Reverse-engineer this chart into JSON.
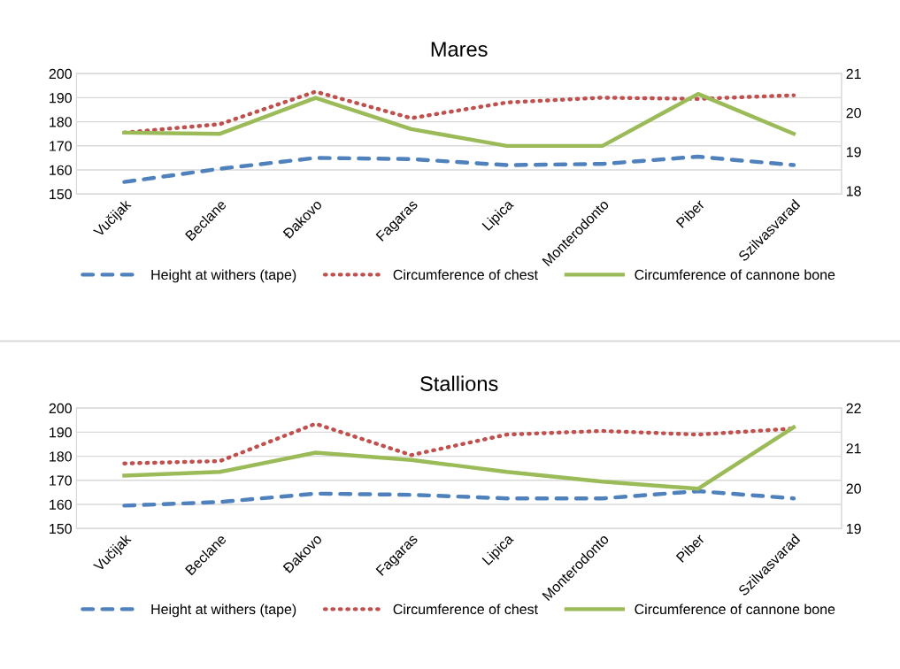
{
  "chart_data": [
    {
      "type": "line",
      "title": "Mares",
      "categories": [
        "Vučijak",
        "Beclane",
        "Đakovo",
        "Fagaras",
        "Lipica",
        "Monterodonto",
        "Piber",
        "Szilvasvarad"
      ],
      "series": [
        {
          "name": "Height at withers (tape)",
          "color": "#4f81bd",
          "line_style": "dashed",
          "values": [
            155,
            160.5,
            165,
            164.5,
            162,
            162.5,
            165.5,
            162
          ]
        },
        {
          "name": "Circumference of chest",
          "color": "#c0504d",
          "line_style": "dotted",
          "values": [
            175.5,
            179,
            192.5,
            181.5,
            188,
            190,
            189.5,
            191
          ]
        },
        {
          "name": "Circumference of cannone bone",
          "color": "#9bbb59",
          "line_style": "solid",
          "axis": "y2",
          "values": [
            19.49,
            19.46,
            20.38,
            19.58,
            19.15,
            19.15,
            20.48,
            19.46
          ]
        }
      ],
      "ylim": [
        150,
        200
      ],
      "yticks": [
        150,
        160,
        170,
        180,
        190,
        200
      ],
      "y2lim": [
        17.92,
        21
      ],
      "y2ticks": [
        18,
        19,
        20,
        21
      ],
      "grid": "y",
      "legend": "bottom",
      "marker": "none"
    },
    {
      "type": "line",
      "title": "Stallions",
      "categories": [
        "Vučijak",
        "Beclane",
        "Đakovo",
        "Fagaras",
        "Lipica",
        "Monterodonto",
        "Piber",
        "Szilvasvarad"
      ],
      "series": [
        {
          "name": "Height at withers (tape)",
          "color": "#4f81bd",
          "line_style": "dashed",
          "values": [
            159.5,
            161,
            164.5,
            164,
            162.5,
            162.5,
            165.5,
            162.5
          ]
        },
        {
          "name": "Circumference of chest",
          "color": "#c0504d",
          "line_style": "dotted",
          "values": [
            177,
            178,
            193.5,
            180.5,
            189,
            190.5,
            189,
            191.5
          ]
        },
        {
          "name": "Circumference of cannone bone",
          "color": "#9bbb59",
          "line_style": "solid",
          "axis": "y2",
          "values": [
            20.32,
            20.41,
            20.89,
            20.71,
            20.41,
            20.17,
            19.99,
            21.52
          ]
        }
      ],
      "ylim": [
        150,
        200
      ],
      "yticks": [
        150,
        160,
        170,
        180,
        190,
        200
      ],
      "y2lim": [
        19,
        22
      ],
      "y2ticks": [
        19,
        20,
        21,
        22
      ],
      "grid": "y",
      "legend": "bottom",
      "marker": "none"
    }
  ]
}
